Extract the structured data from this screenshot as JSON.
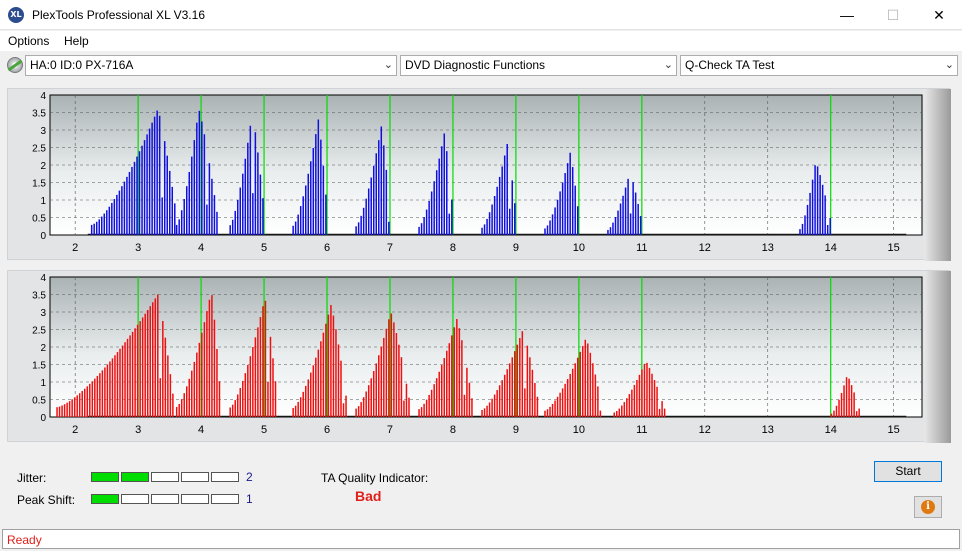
{
  "window": {
    "title": "PlexTools Professional XL V3.16",
    "icon_text": "XL"
  },
  "menu": {
    "items": [
      "Options",
      "Help"
    ]
  },
  "toolbar": {
    "drive_select": "HA:0 ID:0  PX-716A",
    "function_select": "DVD Diagnostic Functions",
    "test_select": "Q-Check TA Test"
  },
  "chart_data": [
    {
      "type": "bar",
      "name": "",
      "color": "#1010dd",
      "x_range": [
        1.6,
        15.45
      ],
      "y_range": [
        0,
        4
      ],
      "x_ticks": [
        "2",
        "3",
        "4",
        "5",
        "6",
        "7",
        "8",
        "9",
        "10",
        "11",
        "12",
        "13",
        "14",
        "15"
      ],
      "y_ticks": [
        "0",
        "0.5",
        "1",
        "1.5",
        "2",
        "2.5",
        "3",
        "3.5",
        "4"
      ],
      "green_markers": [
        3.0,
        4.0,
        5.0,
        6.0,
        7.0,
        8.0,
        9.0,
        10.0,
        11.0,
        14.0
      ],
      "peaks": [
        {
          "start": 2.25,
          "end": 3.6,
          "center": 3.3,
          "height": 3.6
        },
        {
          "start": 3.6,
          "end": 4.25,
          "center": 3.95,
          "height": 3.6
        },
        {
          "start": 4.45,
          "end": 5.0,
          "center": 4.8,
          "height": 3.5
        },
        {
          "start": 5.45,
          "end": 6.0,
          "center": 5.85,
          "height": 3.3
        },
        {
          "start": 6.45,
          "end": 7.0,
          "center": 6.85,
          "height": 3.1
        },
        {
          "start": 7.45,
          "end": 8.0,
          "center": 7.85,
          "height": 2.9
        },
        {
          "start": 8.45,
          "end": 9.0,
          "center": 8.85,
          "height": 2.6
        },
        {
          "start": 9.45,
          "end": 10.0,
          "center": 9.85,
          "height": 2.35
        },
        {
          "start": 10.45,
          "end": 11.0,
          "center": 10.8,
          "height": 1.8
        },
        {
          "start": 13.5,
          "end": 14.0,
          "center": 13.75,
          "height": 2.1
        }
      ]
    },
    {
      "type": "bar",
      "name": "",
      "color": "#ee1010",
      "x_range": [
        1.6,
        15.45
      ],
      "y_range": [
        0,
        4
      ],
      "x_ticks": [
        "2",
        "3",
        "4",
        "5",
        "6",
        "7",
        "8",
        "9",
        "10",
        "11",
        "12",
        "13",
        "14",
        "15"
      ],
      "y_ticks": [
        "0",
        "0.5",
        "1",
        "1.5",
        "2",
        "2.5",
        "3",
        "3.5",
        "4"
      ],
      "green_markers": [
        3.0,
        4.0,
        5.0,
        6.0,
        7.0,
        8.0,
        9.0,
        10.0,
        11.0,
        14.0
      ],
      "peaks": [
        {
          "start": 1.7,
          "end": 3.55,
          "center": 3.3,
          "height": 3.5
        },
        {
          "start": 3.6,
          "end": 4.3,
          "center": 4.15,
          "height": 3.6
        },
        {
          "start": 4.45,
          "end": 5.2,
          "center": 5.0,
          "height": 3.4
        },
        {
          "start": 5.45,
          "end": 6.3,
          "center": 6.05,
          "height": 3.2
        },
        {
          "start": 6.45,
          "end": 7.3,
          "center": 7.0,
          "height": 3.0
        },
        {
          "start": 7.45,
          "end": 8.3,
          "center": 8.05,
          "height": 2.8
        },
        {
          "start": 8.45,
          "end": 9.35,
          "center": 9.1,
          "height": 2.5
        },
        {
          "start": 9.45,
          "end": 10.35,
          "center": 10.1,
          "height": 2.25
        },
        {
          "start": 10.55,
          "end": 11.35,
          "center": 11.05,
          "height": 1.6
        },
        {
          "start": 14.0,
          "end": 14.45,
          "center": 14.25,
          "height": 1.2
        }
      ]
    }
  ],
  "results": {
    "jitter_label": "Jitter:",
    "jitter_value": "2",
    "jitter_level": 2,
    "peak_shift_label": "Peak Shift:",
    "peak_shift_value": "1",
    "peak_shift_level": 1,
    "meter_segments": 5,
    "quality_label": "TA Quality Indicator:",
    "quality_value": "Bad"
  },
  "buttons": {
    "start": "Start",
    "info_icon": "info-icon"
  },
  "status": {
    "text": "Ready"
  }
}
